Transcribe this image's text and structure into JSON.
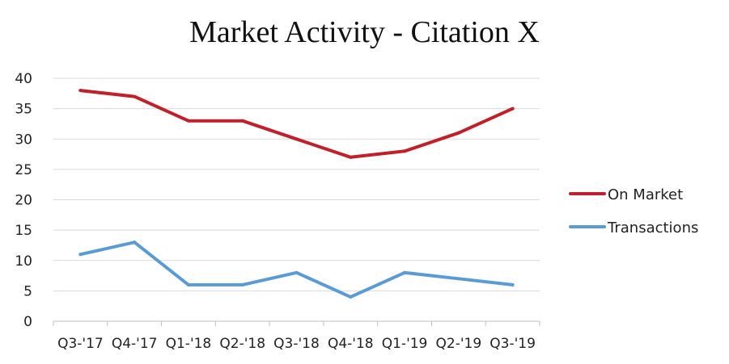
{
  "chart_data": {
    "type": "line",
    "title": "Market Activity - Citation X",
    "xlabel": "",
    "ylabel": "",
    "categories": [
      "Q3-'17",
      "Q4-'17",
      "Q1-'18",
      "Q2-'18",
      "Q3-'18",
      "Q4-'18",
      "Q1-'19",
      "Q2-'19",
      "Q3-'19"
    ],
    "ylim": [
      0,
      40
    ],
    "yticks": [
      0,
      5,
      10,
      15,
      20,
      25,
      30,
      35,
      40
    ],
    "grid": true,
    "legend_position": "right",
    "series": [
      {
        "name": "On Market",
        "color": "#c0202a",
        "values": [
          38,
          37,
          33,
          33,
          30,
          27,
          28,
          31,
          35
        ]
      },
      {
        "name": "Transactions",
        "color": "#5b9bd5",
        "values": [
          11,
          13,
          6,
          6,
          8,
          4,
          8,
          7,
          6
        ]
      }
    ]
  }
}
